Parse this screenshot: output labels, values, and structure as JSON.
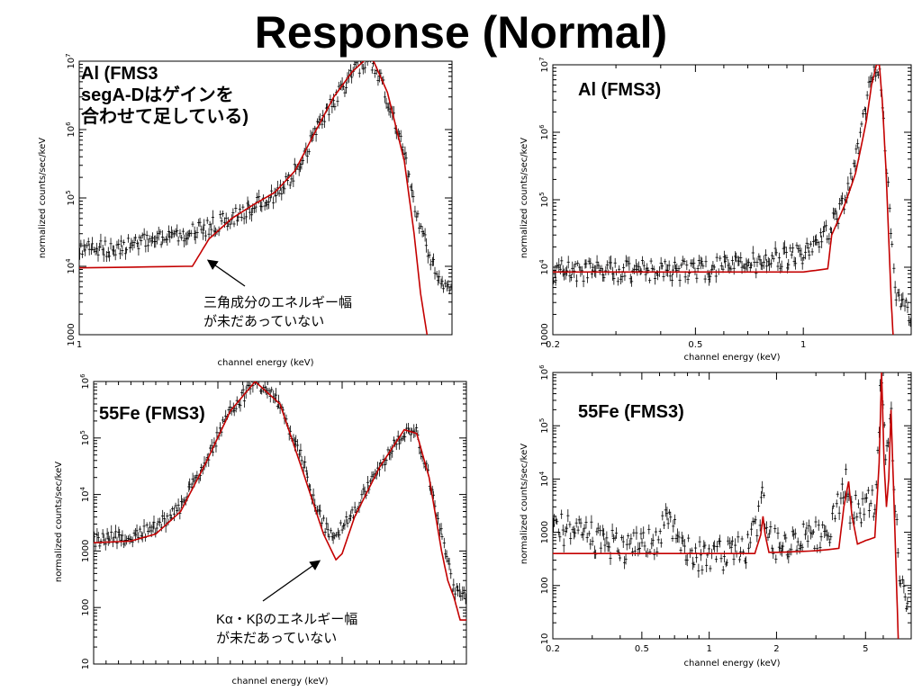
{
  "title": "Response (Normal)",
  "annotations": {
    "al_left": [
      "Al (FMS3",
      "segA-Dはゲインを",
      "合わせて足している)"
    ],
    "al_right": "Al (FMS3)",
    "fe_left": "55Fe (FMS3)",
    "fe_right": "55Fe (FMS3)",
    "triangle_note": [
      "三角成分のエネルギー幅",
      "が未だあっていない"
    ],
    "kab_note": [
      "Kα・Kβのエネルギー幅",
      "が未だあっていない"
    ]
  },
  "colors": {
    "data": "#000000",
    "model": "#c40000"
  },
  "chart_data": [
    {
      "id": "al-segA-D",
      "type": "scatter",
      "xlabel": "channel energy (keV)",
      "ylabel": "normalized counts/sec/keV",
      "xscale": "log",
      "yscale": "log",
      "xlim": [
        1.0,
        1.9
      ],
      "ylim": [
        1000,
        10000000
      ],
      "xticks": [
        {
          "v": 1,
          "t": "1"
        }
      ],
      "yticks": [
        {
          "v": 1000,
          "t": "1000"
        },
        {
          "v": 10000,
          "t": "10^4"
        },
        {
          "v": 100000,
          "t": "10^5"
        },
        {
          "v": 1000000,
          "t": "10^6"
        },
        {
          "v": 10000000,
          "t": "10^7"
        }
      ],
      "series": [
        {
          "role": "data",
          "noise": 0.12,
          "x": [
            1.0,
            1.05,
            1.1,
            1.15,
            1.2,
            1.25,
            1.28,
            1.32,
            1.36,
            1.4,
            1.44,
            1.48,
            1.52,
            1.56,
            1.6,
            1.64,
            1.68,
            1.72,
            1.76,
            1.8,
            1.85,
            1.9
          ],
          "y": [
            18000,
            18000,
            21000,
            25000,
            30000,
            38000,
            45000,
            60000,
            80000,
            110000,
            200000,
            500000,
            1400000,
            3200000,
            6500000,
            11000000,
            5500000,
            1500000,
            250000,
            35000,
            8000,
            4000
          ]
        },
        {
          "role": "model",
          "x": [
            1.0,
            1.2,
            1.215,
            1.25,
            1.3,
            1.35,
            1.4,
            1.45,
            1.5,
            1.55,
            1.6,
            1.64,
            1.66,
            1.7,
            1.75,
            1.78,
            1.8,
            1.82
          ],
          "y": [
            9500,
            10000,
            10000,
            25000,
            50000,
            80000,
            120000,
            250000,
            900000,
            3000000,
            7000000,
            11000000,
            10000000,
            3500000,
            350000,
            30000,
            4000,
            1000
          ]
        }
      ]
    },
    {
      "id": "al-fms3",
      "type": "scatter",
      "xlabel": "channel energy (keV)",
      "ylabel": "normalized counts/sec/keV",
      "xscale": "log",
      "yscale": "log",
      "xlim": [
        0.2,
        2.0
      ],
      "ylim": [
        1000,
        10000000
      ],
      "xticks": [
        {
          "v": 0.2,
          "t": "0.2"
        },
        {
          "v": 0.5,
          "t": "0.5"
        },
        {
          "v": 1,
          "t": "1"
        }
      ],
      "yticks": [
        {
          "v": 1000,
          "t": "1000"
        },
        {
          "v": 10000,
          "t": "10^4"
        },
        {
          "v": 100000,
          "t": "10^5"
        },
        {
          "v": 1000000,
          "t": "10^6"
        },
        {
          "v": 10000000,
          "t": "10^7"
        }
      ],
      "series": [
        {
          "role": "data",
          "noise": 0.16,
          "x": [
            0.2,
            0.3,
            0.4,
            0.5,
            0.6,
            0.7,
            0.8,
            0.9,
            1.0,
            1.1,
            1.2,
            1.3,
            1.35,
            1.4,
            1.45,
            1.5,
            1.55,
            1.6,
            1.62,
            1.66,
            1.7,
            1.75,
            1.8,
            1.9,
            2.0
          ],
          "y": [
            9000,
            8500,
            9000,
            9000,
            10000,
            11000,
            13000,
            14000,
            16000,
            22000,
            40000,
            100000,
            200000,
            400000,
            1000000,
            3000000,
            7000000,
            10000000,
            9000000,
            3000000,
            500000,
            50000,
            5000,
            2500,
            2000
          ]
        },
        {
          "role": "model",
          "x": [
            0.2,
            0.5,
            1.0,
            1.17,
            1.2,
            1.3,
            1.4,
            1.5,
            1.55,
            1.6,
            1.63,
            1.66,
            1.7,
            1.73,
            1.76,
            1.78
          ],
          "y": [
            8500,
            8500,
            8500,
            9500,
            30000,
            80000,
            250000,
            1500000,
            5000000,
            10000000,
            10000000,
            3000000,
            300000,
            30000,
            3000,
            1000
          ]
        }
      ]
    },
    {
      "id": "fe55-segA-D",
      "type": "scatter",
      "xlabel": "channel energy (keV)",
      "ylabel": "normalized counts/sec/keV",
      "xscale": "linear",
      "yscale": "log",
      "xlim": [
        4.0,
        7.0
      ],
      "ylim": [
        10,
        1000000
      ],
      "xticks": [],
      "yticks": [
        {
          "v": 10,
          "t": "10"
        },
        {
          "v": 100,
          "t": "100"
        },
        {
          "v": 1000,
          "t": "1000"
        },
        {
          "v": 10000,
          "t": "10^4"
        },
        {
          "v": 100000,
          "t": "10^5"
        },
        {
          "v": 1000000,
          "t": "10^6"
        }
      ],
      "series": [
        {
          "role": "data",
          "noise": 0.12,
          "x": [
            4.0,
            4.3,
            4.5,
            4.7,
            4.9,
            5.1,
            5.3,
            5.5,
            5.7,
            5.8,
            5.9,
            6.0,
            6.1,
            6.3,
            6.5,
            6.6,
            6.7,
            6.8,
            6.9,
            7.0
          ],
          "y": [
            1500,
            1800,
            2500,
            6000,
            40000,
            300000,
            1000000,
            400000,
            30000,
            5000,
            2000,
            2500,
            5000,
            30000,
            130000,
            120000,
            20000,
            2000,
            200,
            150
          ]
        },
        {
          "role": "model",
          "x": [
            4.0,
            4.3,
            4.5,
            4.7,
            4.9,
            5.1,
            5.3,
            5.5,
            5.7,
            5.85,
            5.95,
            6.0,
            6.1,
            6.3,
            6.5,
            6.6,
            6.7,
            6.8,
            6.85,
            6.9,
            6.95,
            7.0
          ],
          "y": [
            1400,
            1500,
            2000,
            5000,
            35000,
            300000,
            1000000,
            400000,
            20000,
            2000,
            700,
            900,
            4000,
            30000,
            140000,
            120000,
            20000,
            1000,
            300,
            150,
            60,
            60
          ]
        }
      ]
    },
    {
      "id": "fe55-fms3",
      "type": "scatter",
      "xlabel": "channel energy (keV)",
      "ylabel": "normalized counts/sec/keV",
      "xscale": "log",
      "yscale": "log",
      "xlim": [
        0.2,
        8.0
      ],
      "ylim": [
        10,
        1000000
      ],
      "xticks": [
        {
          "v": 0.2,
          "t": "0.2"
        },
        {
          "v": 0.5,
          "t": "0.5"
        },
        {
          "v": 1,
          "t": "1"
        },
        {
          "v": 2,
          "t": "2"
        },
        {
          "v": 5,
          "t": "5"
        }
      ],
      "yticks": [
        {
          "v": 10,
          "t": "10"
        },
        {
          "v": 100,
          "t": "100"
        },
        {
          "v": 1000,
          "t": "1000"
        },
        {
          "v": 10000,
          "t": "10^4"
        },
        {
          "v": 100000,
          "t": "10^5"
        },
        {
          "v": 1000000,
          "t": "10^6"
        }
      ],
      "series": [
        {
          "role": "data",
          "noise": 0.3,
          "x": [
            0.2,
            0.3,
            0.4,
            0.5,
            0.6,
            0.65,
            0.7,
            0.8,
            1.0,
            1.2,
            1.5,
            1.65,
            1.74,
            1.8,
            2.0,
            2.5,
            3.0,
            3.5,
            3.9,
            4.1,
            4.3,
            4.6,
            5.0,
            5.5,
            5.9,
            6.2,
            6.5,
            6.8,
            7.2,
            7.8
          ],
          "y": [
            1200,
            800,
            500,
            500,
            800,
            2000,
            1000,
            400,
            300,
            400,
            500,
            1500,
            4000,
            1000,
            600,
            700,
            900,
            1200,
            5000,
            9000,
            2000,
            3000,
            3000,
            3500,
            1000000,
            20000,
            200000,
            2000,
            100,
            30
          ]
        },
        {
          "role": "model",
          "x": [
            0.2,
            1.0,
            1.6,
            1.7,
            1.74,
            1.78,
            1.85,
            2.0,
            3.0,
            3.8,
            4.0,
            4.2,
            4.35,
            4.6,
            5.0,
            5.5,
            5.75,
            5.9,
            6.05,
            6.2,
            6.35,
            6.5,
            6.65,
            6.8,
            7.0
          ],
          "y": [
            400,
            400,
            400,
            900,
            2000,
            900,
            420,
            420,
            450,
            500,
            3000,
            9000,
            2000,
            600,
            700,
            800,
            20000,
            1000000,
            20000,
            3000,
            10000,
            200000,
            10000,
            500,
            10
          ]
        }
      ]
    }
  ]
}
